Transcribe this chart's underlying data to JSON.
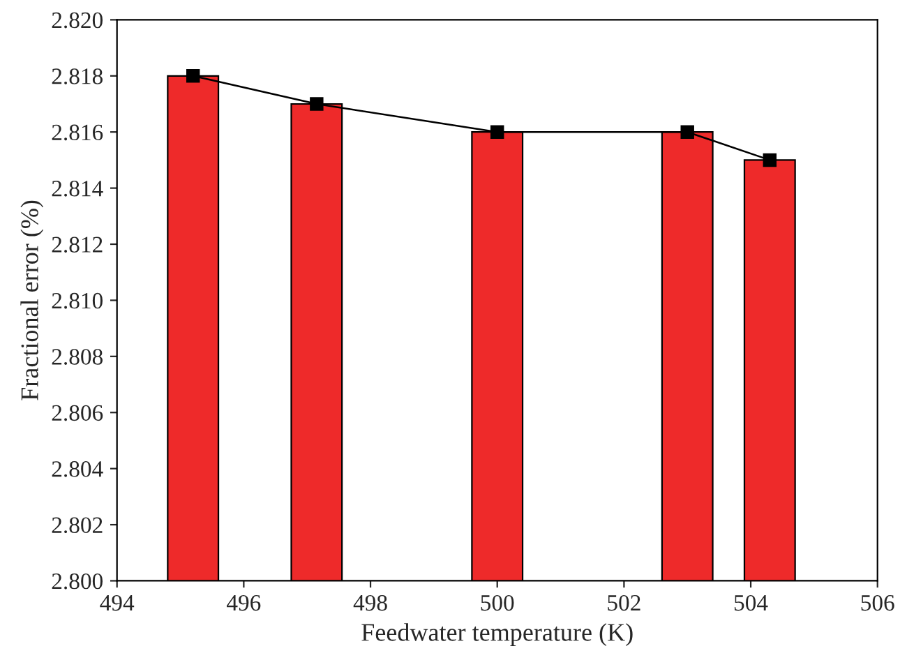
{
  "chart_data": {
    "type": "bar",
    "xlabel": "Feedwater temperature (K)",
    "ylabel": "Fractional error (%)",
    "x": [
      495.2,
      497.15,
      500,
      503,
      504.3
    ],
    "series": [
      {
        "color": "#ee2a2a",
        "values": [
          2.818,
          2.817,
          2.816,
          2.816,
          2.815
        ]
      },
      {
        "type": "line",
        "color": "#000000",
        "marker": "square",
        "line_style": "solid",
        "values": [
          2.818,
          2.817,
          2.816,
          2.816,
          2.815
        ]
      }
    ],
    "xlim": [
      494,
      506
    ],
    "xticks": [
      494,
      496,
      498,
      500,
      502,
      504,
      506
    ],
    "ylim": [
      2.8,
      2.82
    ],
    "yticks": [
      {
        "value": 2.8,
        "label": "2.800"
      },
      {
        "value": 2.802,
        "label": "2.802"
      },
      {
        "value": 2.804,
        "label": "2.804"
      },
      {
        "value": 2.806,
        "label": "2.806"
      },
      {
        "value": 2.808,
        "label": "2.808"
      },
      {
        "value": 2.81,
        "label": "2.810"
      },
      {
        "value": 2.812,
        "label": "2.812"
      },
      {
        "value": 2.814,
        "label": "2.814"
      },
      {
        "value": 2.816,
        "label": "2.816"
      },
      {
        "value": 2.818,
        "label": "2.818"
      },
      {
        "value": 2.82,
        "label": "2.820"
      }
    ],
    "grid": false
  }
}
